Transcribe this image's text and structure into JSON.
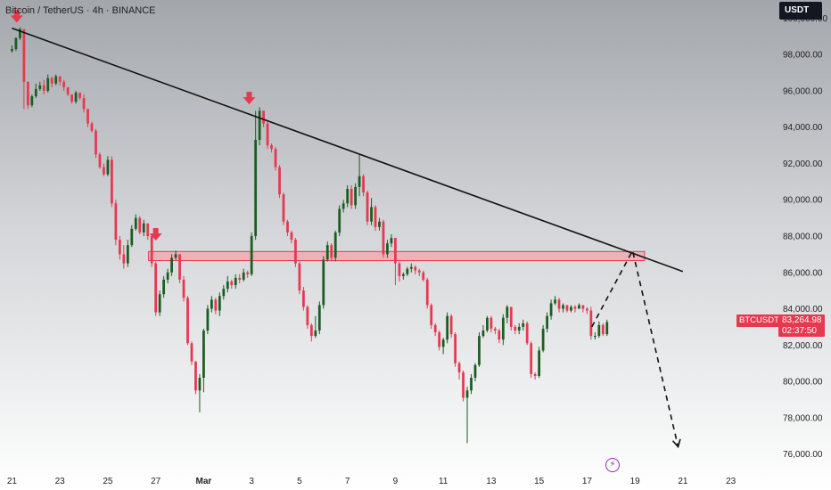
{
  "header": {
    "title": "Bitcoin / TetherUS · 4h · BINANCE"
  },
  "currency_button": {
    "label": "USDT"
  },
  "price_badge": {
    "symbol": "BTCUSDT",
    "price": "83,264.98",
    "countdown": "02:37:50"
  },
  "events": {
    "icon": "lightning-icon",
    "glyph": "⚡"
  },
  "colors": {
    "up": "#1b5e20",
    "down": "#e53950",
    "trendline": "#111111",
    "zone_fill": "#f4a3ad",
    "zone_stroke": "#e53950",
    "projection": "#111111"
  },
  "chart_data": {
    "type": "candlestick",
    "ylim": [
      75000,
      101000
    ],
    "y_ticks": [
      "100,000.00",
      "98,000.00",
      "96,000.00",
      "94,000.00",
      "92,000.00",
      "90,000.00",
      "88,000.00",
      "86,000.00",
      "84,000.00",
      "82,000.00",
      "80,000.00",
      "78,000.00",
      "76,000.00"
    ],
    "y_tick_values": [
      100000,
      98000,
      96000,
      94000,
      92000,
      90000,
      88000,
      86000,
      84000,
      82000,
      80000,
      78000,
      76000
    ],
    "x_ticks": [
      "21",
      "23",
      "25",
      "27",
      "Mar",
      "3",
      "5",
      "7",
      "9",
      "11",
      "13",
      "15",
      "17",
      "19",
      "21",
      "23"
    ],
    "x_tick_days": [
      -8,
      -6,
      -4,
      -2,
      0,
      2,
      4,
      6,
      8,
      10,
      12,
      14,
      16,
      18,
      20,
      22
    ],
    "x_range_days": [
      -8.5,
      23.8
    ],
    "bars_per_day": 6,
    "start_price": 98200,
    "closes": [
      98300,
      98900,
      99400,
      96500,
      95200,
      95700,
      96100,
      96300,
      96000,
      96700,
      96400,
      96800,
      96500,
      96200,
      95800,
      95400,
      95900,
      95600,
      95000,
      94200,
      93800,
      92500,
      91800,
      91400,
      92200,
      89800,
      87800,
      87000,
      86500,
      87500,
      88400,
      89000,
      88200,
      88700,
      88000,
      86500,
      83800,
      84800,
      85600,
      86000,
      86800,
      87000,
      85600,
      84600,
      82100,
      81100,
      79500,
      80200,
      82800,
      84000,
      84500,
      83900,
      84700,
      85100,
      85500,
      85300,
      85700,
      85600,
      86000,
      85900,
      88000,
      93300,
      94900,
      94200,
      93000,
      92800,
      91800,
      90300,
      88800,
      88200,
      87800,
      86500,
      85000,
      84100,
      83100,
      82500,
      82800,
      84200,
      86700,
      87500,
      86800,
      88200,
      89500,
      89800,
      90600,
      89700,
      90700,
      91300,
      90400,
      88800,
      89600,
      88500,
      88800,
      87000,
      87600,
      87900,
      86500,
      85800,
      85900,
      86200,
      86300,
      86100,
      86000,
      85600,
      84200,
      83100,
      82700,
      81900,
      82300,
      83600,
      82600,
      81000,
      80500,
      79100,
      79500,
      80200,
      80900,
      82500,
      82800,
      83500,
      82900,
      82800,
      82300,
      83500,
      84100,
      83000,
      82800,
      83000,
      83200,
      82100,
      80400,
      80300,
      81700,
      82900,
      83600,
      84300,
      84500,
      84000,
      84200,
      83900,
      84100,
      84000,
      84200,
      84000,
      83900,
      82500,
      82500,
      83100,
      82600,
      83265
    ],
    "highs": [
      98500,
      98950,
      99500,
      99200,
      96300,
      95800,
      96400,
      96500,
      96600,
      96900,
      96800,
      96900,
      96600,
      96600,
      96000,
      95800,
      96000,
      95800,
      95800,
      95000,
      94300,
      93900,
      92600,
      92000,
      92400,
      92400,
      90000,
      88000,
      87500,
      87800,
      88600,
      89200,
      89100,
      88900,
      88700,
      88100,
      86600,
      85000,
      85800,
      86200,
      87000,
      87200,
      87000,
      85800,
      84700,
      82200,
      81100,
      80400,
      82900,
      84200,
      84700,
      84600,
      84900,
      85300,
      85800,
      85600,
      85900,
      85900,
      86200,
      86100,
      88200,
      94900,
      95100,
      94900,
      94300,
      93100,
      92900,
      91900,
      90400,
      88900,
      88300,
      87900,
      86600,
      85200,
      84200,
      83200,
      83600,
      84400,
      86900,
      87700,
      87600,
      88300,
      89700,
      90000,
      90800,
      90800,
      90900,
      92500,
      91400,
      90500,
      90100,
      89700,
      89000,
      88900,
      87800,
      88100,
      87900,
      86600,
      86000,
      86300,
      86500,
      86400,
      86200,
      86100,
      85700,
      84300,
      83200,
      82800,
      82400,
      83800,
      83700,
      82700,
      81100,
      80600,
      79700,
      80400,
      81000,
      82700,
      83100,
      83600,
      83600,
      83000,
      82900,
      83700,
      84200,
      84100,
      83100,
      83200,
      83400,
      83300,
      82200,
      80500,
      81900,
      83100,
      83800,
      84500,
      84700,
      84600,
      84300,
      84200,
      84200,
      84200,
      84300,
      84200,
      84100,
      84100,
      82700,
      83300,
      83200,
      83400
    ],
    "lows": [
      98100,
      98200,
      98800,
      95000,
      95000,
      95100,
      95600,
      96000,
      95800,
      95900,
      96200,
      96300,
      96300,
      96000,
      95700,
      95300,
      95300,
      95500,
      94800,
      94000,
      93700,
      92300,
      91700,
      91300,
      91300,
      89600,
      87500,
      86700,
      86200,
      86300,
      87400,
      88300,
      88100,
      88000,
      87800,
      86300,
      83600,
      83600,
      84600,
      85400,
      85800,
      86700,
      85400,
      84400,
      82000,
      80900,
      79300,
      78300,
      79400,
      82600,
      83800,
      83700,
      83600,
      84500,
      84900,
      85100,
      85100,
      85400,
      85500,
      85700,
      85800,
      87800,
      93000,
      94000,
      92800,
      92600,
      91600,
      90100,
      88600,
      88000,
      87600,
      86300,
      84800,
      83900,
      82900,
      82200,
      82400,
      82600,
      84000,
      86600,
      86600,
      86600,
      88000,
      89300,
      89600,
      89500,
      89500,
      90200,
      90200,
      88600,
      88600,
      88300,
      88300,
      86800,
      86800,
      87400,
      85300,
      85500,
      85600,
      85800,
      86000,
      85900,
      85800,
      85500,
      84000,
      82900,
      82500,
      81700,
      81500,
      82100,
      82400,
      80800,
      80100,
      78900,
      76600,
      79300,
      80000,
      80800,
      82400,
      82700,
      82700,
      82600,
      82100,
      82000,
      83200,
      82800,
      82600,
      82600,
      82800,
      82000,
      80200,
      80100,
      80200,
      81600,
      82700,
      83400,
      84200,
      83800,
      83800,
      83800,
      83800,
      83800,
      84000,
      83800,
      83700,
      82300,
      82300,
      82400,
      82500,
      82500
    ]
  },
  "annotations": {
    "trendline": {
      "from": {
        "day": -8.0,
        "price": 99450
      },
      "to": {
        "day": 20.0,
        "price": 86050
      }
    },
    "resistance_zone": {
      "day_from": -2.3,
      "day_to": 18.4,
      "price_from": 86650,
      "price_to": 87150
    },
    "projection": [
      {
        "day": 16.2,
        "price": 83000
      },
      {
        "day": 17.9,
        "price": 87200
      },
      {
        "day": 19.8,
        "price": 76400
      }
    ],
    "arrows": [
      {
        "day": -7.8,
        "price": 100000
      },
      {
        "day": 1.9,
        "price": 95500
      },
      {
        "day": -2.0,
        "price": 88000
      }
    ]
  }
}
